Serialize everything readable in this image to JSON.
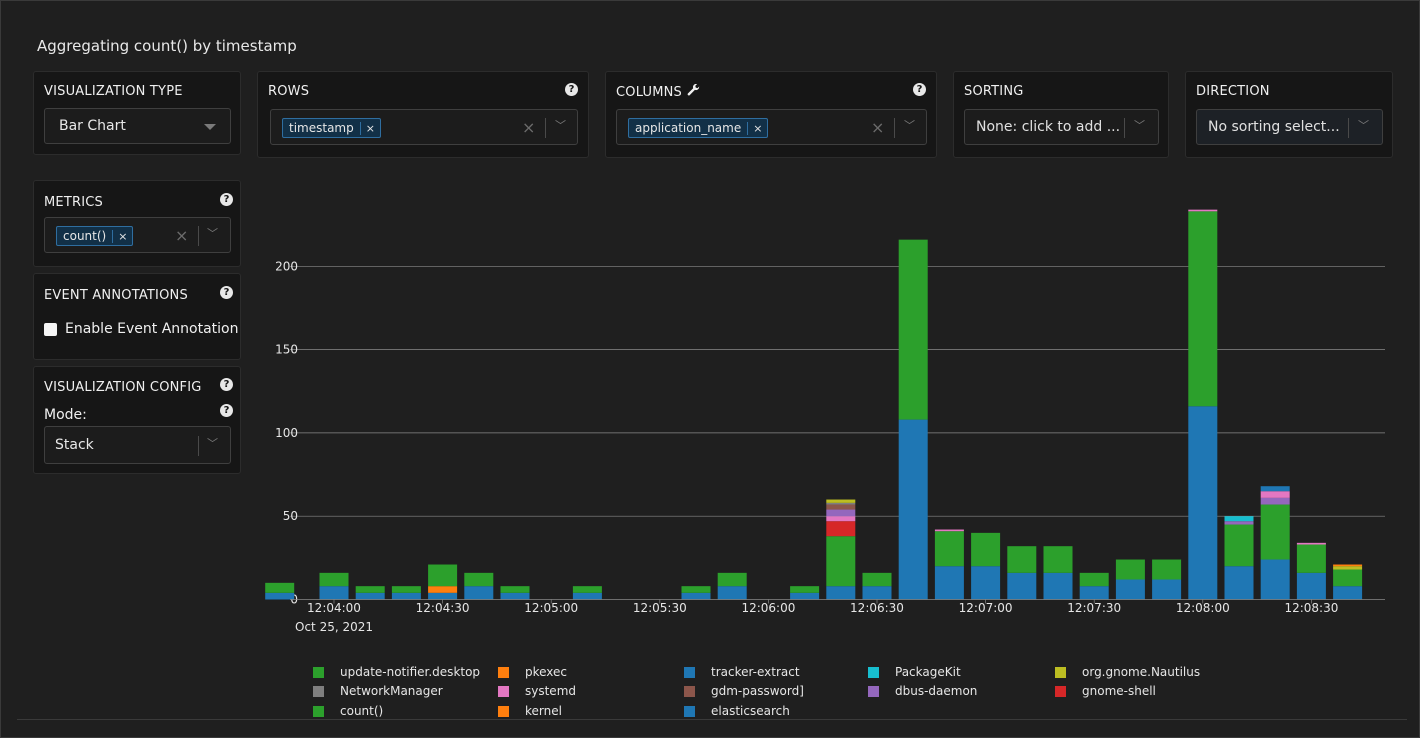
{
  "title": "Aggregating count() by timestamp",
  "controls": {
    "viz_type": {
      "label": "VISUALIZATION TYPE",
      "value": "Bar Chart"
    },
    "rows": {
      "label": "ROWS",
      "chip": "timestamp",
      "help": "?"
    },
    "columns": {
      "label": "COLUMNS",
      "chip": "application_name",
      "help": "?"
    },
    "sorting": {
      "label": "SORTING",
      "value": "None: click to add ..."
    },
    "direction": {
      "label": "DIRECTION",
      "value": "No sorting select..."
    },
    "metrics": {
      "label": "METRICS",
      "chip": "count()",
      "help": "?"
    },
    "event_annotations": {
      "label": "EVENT ANNOTATIONS",
      "checkbox_label": "Enable Event Annotation",
      "help": "?"
    },
    "viz_config": {
      "label": "VISUALIZATION CONFIG",
      "mode_label": "Mode:",
      "mode_value": "Stack",
      "help": "?"
    }
  },
  "colors": {
    "update-notifier.desktop": "#2ca02c",
    "NetworkManager": "#7f7f7f",
    "count()": "#2ca02c",
    "pkexec": "#ff7f0e",
    "systemd": "#e377c2",
    "kernel": "#ff7f0e",
    "tracker-extract": "#1f77b4",
    "gdm-password]": "#8c564b",
    "elasticsearch": "#1f77b4",
    "PackageKit": "#17becf",
    "dbus-daemon": "#9467bd",
    "org.gnome.Nautilus": "#bcbd22",
    "gnome-shell": "#d62728"
  },
  "legend": [
    "update-notifier.desktop",
    "NetworkManager",
    "count()",
    "pkexec",
    "systemd",
    "kernel",
    "tracker-extract",
    "gdm-password]",
    "elasticsearch",
    "PackageKit",
    "dbus-daemon",
    "org.gnome.Nautilus",
    "gnome-shell"
  ],
  "chart_data": {
    "type": "bar",
    "stacked": true,
    "title": "",
    "xlabel": "",
    "ylabel": "",
    "ylim": [
      0,
      240
    ],
    "yticks": [
      0,
      50,
      100,
      150,
      200
    ],
    "grid": true,
    "x_tick_labels": [
      "12:04:00",
      "12:04:30",
      "12:05:00",
      "12:05:30",
      "12:06:00",
      "12:06:30",
      "12:07:00",
      "12:07:30",
      "12:08:00",
      "12:08:30"
    ],
    "x_date_label": "Oct 25, 2021",
    "x_start_seconds": 0,
    "bin_seconds": 10,
    "bars": [
      {
        "t": -15,
        "segs": [
          [
            "elasticsearch",
            4
          ],
          [
            "count()",
            6
          ]
        ]
      },
      {
        "t": 0,
        "segs": [
          [
            "elasticsearch",
            8
          ],
          [
            "count()",
            8
          ]
        ]
      },
      {
        "t": 10,
        "segs": [
          [
            "elasticsearch",
            4
          ],
          [
            "count()",
            4
          ]
        ]
      },
      {
        "t": 20,
        "segs": [
          [
            "elasticsearch",
            4
          ],
          [
            "count()",
            4
          ]
        ]
      },
      {
        "t": 30,
        "segs": [
          [
            "elasticsearch",
            4
          ],
          [
            "kernel",
            4
          ],
          [
            "count()",
            13
          ]
        ]
      },
      {
        "t": 40,
        "segs": [
          [
            "elasticsearch",
            8
          ],
          [
            "count()",
            8
          ]
        ]
      },
      {
        "t": 50,
        "segs": [
          [
            "elasticsearch",
            4
          ],
          [
            "count()",
            4
          ]
        ]
      },
      {
        "t": 70,
        "segs": [
          [
            "elasticsearch",
            4
          ],
          [
            "count()",
            4
          ]
        ]
      },
      {
        "t": 100,
        "segs": [
          [
            "elasticsearch",
            4
          ],
          [
            "count()",
            4
          ]
        ]
      },
      {
        "t": 110,
        "segs": [
          [
            "elasticsearch",
            8
          ],
          [
            "count()",
            8
          ]
        ]
      },
      {
        "t": 130,
        "segs": [
          [
            "elasticsearch",
            4
          ],
          [
            "count()",
            4
          ]
        ]
      },
      {
        "t": 140,
        "segs": [
          [
            "elasticsearch",
            8
          ],
          [
            "count()",
            30
          ],
          [
            "gnome-shell",
            9
          ],
          [
            "systemd",
            3
          ],
          [
            "dbus-daemon",
            4
          ],
          [
            "gdm-password]",
            3
          ],
          [
            "NetworkManager",
            1
          ],
          [
            "org.gnome.Nautilus",
            2
          ]
        ]
      },
      {
        "t": 150,
        "segs": [
          [
            "elasticsearch",
            8
          ],
          [
            "count()",
            8
          ]
        ]
      },
      {
        "t": 160,
        "segs": [
          [
            "elasticsearch",
            108
          ],
          [
            "count()",
            108
          ]
        ]
      },
      {
        "t": 170,
        "segs": [
          [
            "elasticsearch",
            20
          ],
          [
            "count()",
            21
          ],
          [
            "systemd",
            1
          ]
        ]
      },
      {
        "t": 180,
        "segs": [
          [
            "elasticsearch",
            20
          ],
          [
            "count()",
            20
          ]
        ]
      },
      {
        "t": 190,
        "segs": [
          [
            "elasticsearch",
            16
          ],
          [
            "count()",
            16
          ]
        ]
      },
      {
        "t": 200,
        "segs": [
          [
            "elasticsearch",
            16
          ],
          [
            "count()",
            16
          ]
        ]
      },
      {
        "t": 210,
        "segs": [
          [
            "elasticsearch",
            8
          ],
          [
            "count()",
            8
          ]
        ]
      },
      {
        "t": 220,
        "segs": [
          [
            "elasticsearch",
            12
          ],
          [
            "count()",
            12
          ]
        ]
      },
      {
        "t": 230,
        "segs": [
          [
            "elasticsearch",
            12
          ],
          [
            "count()",
            12
          ]
        ]
      },
      {
        "t": 240,
        "segs": [
          [
            "elasticsearch",
            116
          ],
          [
            "count()",
            117
          ],
          [
            "systemd",
            1
          ]
        ]
      },
      {
        "t": 250,
        "segs": [
          [
            "elasticsearch",
            20
          ],
          [
            "count()",
            25
          ],
          [
            "dbus-daemon",
            2
          ],
          [
            "PackageKit",
            3
          ]
        ]
      },
      {
        "t": 260,
        "segs": [
          [
            "elasticsearch",
            24
          ],
          [
            "count()",
            33
          ],
          [
            "dbus-daemon",
            4
          ],
          [
            "systemd",
            4
          ],
          [
            "tracker-extract",
            3
          ]
        ]
      },
      {
        "t": 270,
        "segs": [
          [
            "elasticsearch",
            16
          ],
          [
            "count()",
            17
          ],
          [
            "systemd",
            1
          ]
        ]
      },
      {
        "t": 280,
        "segs": [
          [
            "elasticsearch",
            8
          ],
          [
            "count()",
            10
          ],
          [
            "org.gnome.Nautilus",
            2
          ],
          [
            "pkexec",
            1
          ]
        ]
      }
    ]
  }
}
